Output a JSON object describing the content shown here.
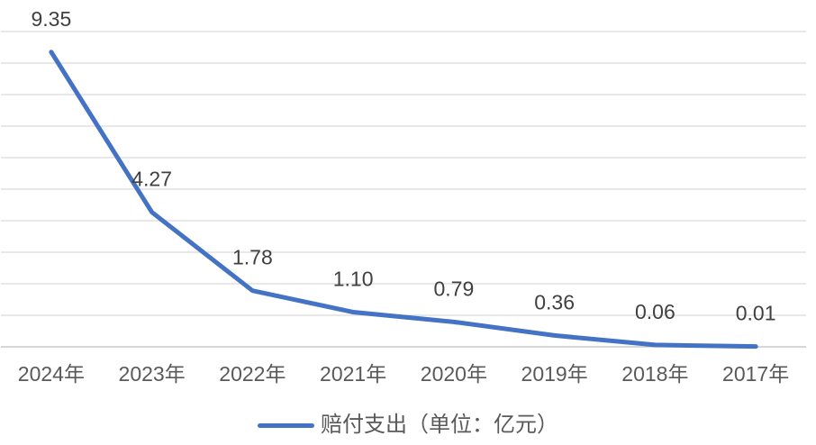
{
  "chart_data": {
    "type": "line",
    "categories": [
      "2024年",
      "2023年",
      "2022年",
      "2021年",
      "2020年",
      "2019年",
      "2018年",
      "2017年"
    ],
    "series": [
      {
        "name": "赔付支出（单位：亿元）",
        "values": [
          9.35,
          4.27,
          1.78,
          1.1,
          0.79,
          0.36,
          0.06,
          0.01
        ],
        "data_labels": [
          "9.35",
          "4.27",
          "1.78",
          "1.10",
          "0.79",
          "0.36",
          "0.06",
          "0.01"
        ]
      }
    ],
    "title": "",
    "xlabel": "",
    "ylabel": "",
    "ylim": [
      0,
      10
    ],
    "gridline_step": 1,
    "grid": true,
    "legend_position": "bottom",
    "colors": {
      "line": "#4472C4",
      "gridline": "#D9D9D9",
      "axis_line": "#BFBFBF",
      "data_label": "#404040",
      "tick_label": "#595959",
      "legend_text": "#595959"
    }
  },
  "legend": {
    "label": "赔付支出（单位：亿元）"
  }
}
